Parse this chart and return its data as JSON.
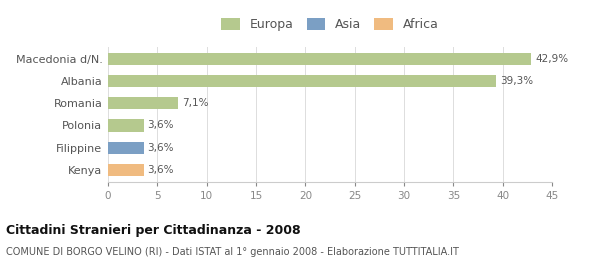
{
  "categories": [
    "Macedonia d/N.",
    "Albania",
    "Romania",
    "Polonia",
    "Filippine",
    "Kenya"
  ],
  "values": [
    42.9,
    39.3,
    7.1,
    3.6,
    3.6,
    3.6
  ],
  "labels": [
    "42,9%",
    "39,3%",
    "7,1%",
    "3,6%",
    "3,6%",
    "3,6%"
  ],
  "colors": [
    "#b5c98e",
    "#b5c98e",
    "#b5c98e",
    "#b5c98e",
    "#7b9fc4",
    "#f0bb80"
  ],
  "legend_items": [
    {
      "label": "Europa",
      "color": "#b5c98e"
    },
    {
      "label": "Asia",
      "color": "#7b9fc4"
    },
    {
      "label": "Africa",
      "color": "#f0bb80"
    }
  ],
  "xlim": [
    0,
    45
  ],
  "xticks": [
    0,
    5,
    10,
    15,
    20,
    25,
    30,
    35,
    40,
    45
  ],
  "title": "Cittadini Stranieri per Cittadinanza - 2008",
  "subtitle": "COMUNE DI BORGO VELINO (RI) - Dati ISTAT al 1° gennaio 2008 - Elaborazione TUTTITALIA.IT",
  "background_color": "#ffffff",
  "bar_height": 0.55
}
